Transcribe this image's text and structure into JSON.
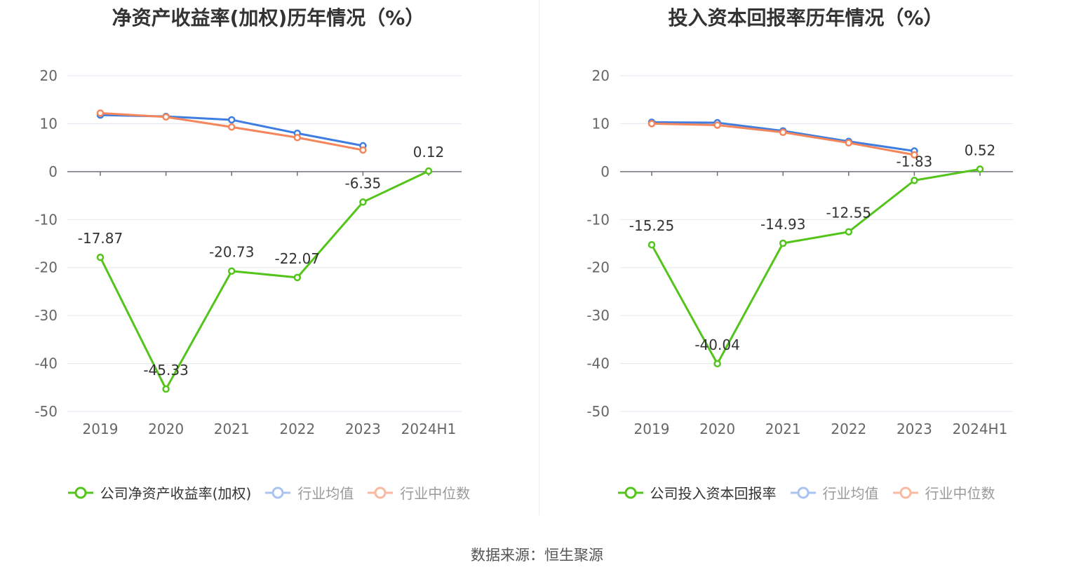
{
  "source_text": "数据来源：恒生聚源",
  "chart_data": [
    {
      "type": "line",
      "title": "净资产收益率(加权)历年情况（%）",
      "categories": [
        "2019",
        "2020",
        "2021",
        "2022",
        "2023",
        "2024H1"
      ],
      "ylim": [
        -50,
        20
      ],
      "yticks": [
        20,
        10,
        0,
        -10,
        -20,
        -30,
        -40,
        -50
      ],
      "grid": true,
      "legend_position": "bottom",
      "series": [
        {
          "name": "公司净资产收益率(加权)",
          "color": "#52c41a",
          "values": [
            -17.87,
            -45.33,
            -20.73,
            -22.07,
            -6.35,
            0.12
          ],
          "labels": [
            "-17.87",
            "-45.33",
            "-20.73",
            "-22.07",
            "-6.35",
            "0.12"
          ]
        },
        {
          "name": "行业均值",
          "color": "#3f7ee0",
          "values": [
            11.8,
            11.5,
            10.8,
            8.0,
            5.4,
            null
          ]
        },
        {
          "name": "行业中位数",
          "color": "#f5855a",
          "values": [
            12.2,
            11.4,
            9.3,
            7.1,
            4.5,
            null
          ]
        }
      ]
    },
    {
      "type": "line",
      "title": "投入资本回报率历年情况（%）",
      "categories": [
        "2019",
        "2020",
        "2021",
        "2022",
        "2023",
        "2024H1"
      ],
      "ylim": [
        -50,
        20
      ],
      "yticks": [
        20,
        10,
        0,
        -10,
        -20,
        -30,
        -40,
        -50
      ],
      "grid": true,
      "legend_position": "bottom",
      "series": [
        {
          "name": "公司投入资本回报率",
          "color": "#52c41a",
          "values": [
            -15.25,
            -40.04,
            -14.93,
            -12.55,
            -1.83,
            0.52
          ],
          "labels": [
            "-15.25",
            "-40.04",
            "-14.93",
            "-12.55",
            "-1.83",
            "0.52"
          ]
        },
        {
          "name": "行业均值",
          "color": "#3f7ee0",
          "values": [
            10.3,
            10.2,
            8.5,
            6.3,
            4.3,
            null
          ]
        },
        {
          "name": "行业中位数",
          "color": "#f5855a",
          "values": [
            10.0,
            9.7,
            8.2,
            6.0,
            3.5,
            null
          ]
        }
      ]
    }
  ]
}
